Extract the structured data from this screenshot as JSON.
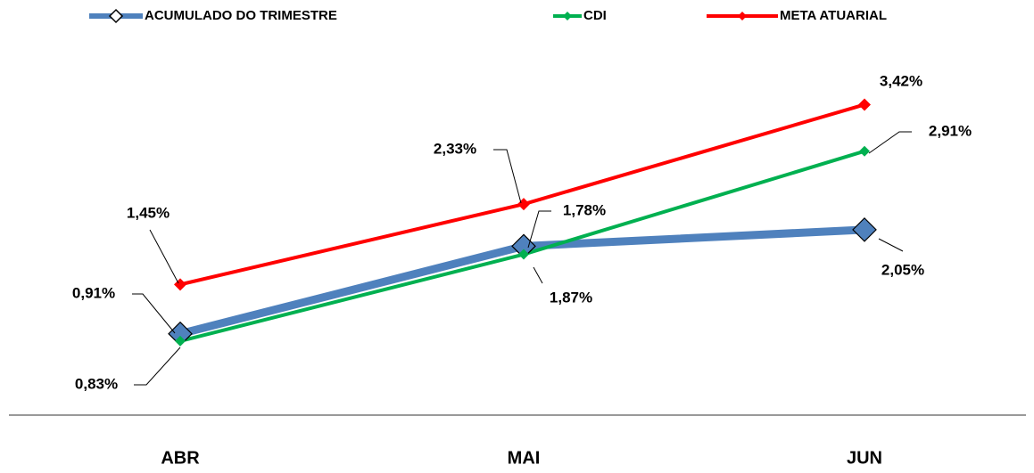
{
  "chart_data": {
    "type": "line",
    "categories": [
      "ABR",
      "MAI",
      "JUN"
    ],
    "series": [
      {
        "name": "ACUMULADO DO TRIMESTRE",
        "color": "#4f81bd",
        "values": [
          0.91,
          1.87,
          2.05
        ],
        "value_labels": [
          "0,91%",
          "1,87%",
          "2,05%"
        ]
      },
      {
        "name": "CDI",
        "color": "#00b050",
        "values": [
          0.83,
          1.78,
          2.91
        ],
        "value_labels": [
          "0,83%",
          "1,78%",
          "2,91%"
        ]
      },
      {
        "name": "META ATUARIAL",
        "color": "#ff0000",
        "values": [
          1.45,
          2.33,
          3.42
        ],
        "value_labels": [
          "1,45%",
          "2,33%",
          "3,42%"
        ]
      }
    ],
    "ylim": [
      0,
      4
    ]
  }
}
